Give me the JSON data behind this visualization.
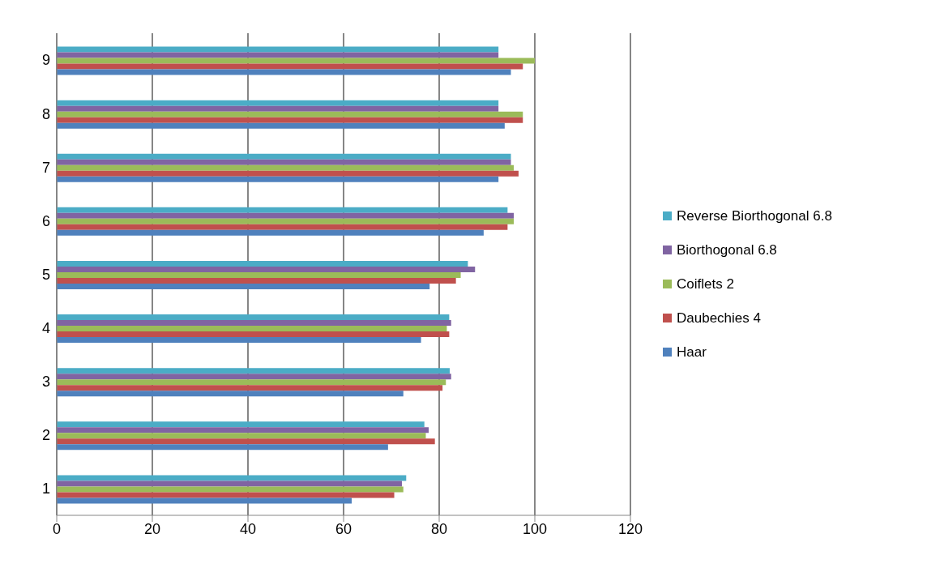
{
  "chart_data": {
    "type": "bar",
    "orientation": "horizontal",
    "categories": [
      "9",
      "8",
      "7",
      "6",
      "5",
      "4",
      "3",
      "2",
      "1"
    ],
    "series": [
      {
        "name": "Reverse Biorthogonal 6.8",
        "color": "#4bacc6",
        "values": [
          92.4,
          92.4,
          95.0,
          94.3,
          86.0,
          82.1,
          82.2,
          76.9,
          73.1
        ]
      },
      {
        "name": "Biorthogonal 6.8",
        "color": "#8064a2",
        "values": [
          92.4,
          92.4,
          95.0,
          95.6,
          87.5,
          82.5,
          82.5,
          77.8,
          72.2
        ]
      },
      {
        "name": "Coiflets 2",
        "color": "#9bbb59",
        "values": [
          100,
          97.5,
          95.6,
          95.6,
          84.5,
          81.6,
          81.4,
          77.2,
          72.5
        ]
      },
      {
        "name": "Daubechies 4",
        "color": "#c0504d",
        "values": [
          97.5,
          97.5,
          96.6,
          94.3,
          83.5,
          82.1,
          80.7,
          79.1,
          70.6
        ]
      },
      {
        "name": "Haar",
        "color": "#4f81bd",
        "values": [
          95.0,
          93.7,
          92.4,
          89.3,
          78.0,
          76.2,
          72.5,
          69.3,
          61.7
        ]
      }
    ],
    "xlim": [
      0,
      120
    ],
    "xticks": [
      0,
      20,
      40,
      60,
      80,
      100,
      120
    ],
    "grid": "x",
    "legend": "right"
  }
}
